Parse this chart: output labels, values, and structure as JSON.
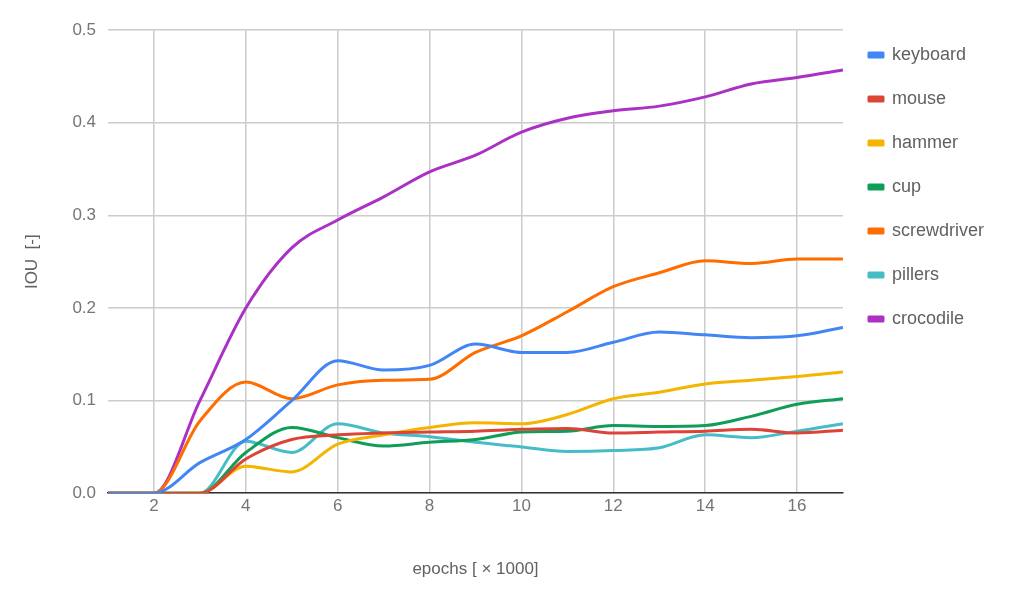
{
  "chart_data": {
    "type": "line",
    "xlabel": "epochs [ × 1000]",
    "ylabel": "IOU  [-]",
    "x": [
      1,
      2,
      3,
      4,
      5,
      6,
      7,
      8,
      9,
      10,
      11,
      12,
      13,
      14,
      15,
      16,
      17
    ],
    "xlim": [
      1,
      17
    ],
    "xticks": [
      2,
      4,
      6,
      8,
      10,
      12,
      14,
      16
    ],
    "ylim": [
      0,
      0.5
    ],
    "yticks": [
      {
        "value": 0,
        "label": "0.0"
      },
      {
        "value": 0.1,
        "label": "0.1"
      },
      {
        "value": 0.2,
        "label": "0.2"
      },
      {
        "value": 0.3,
        "label": "0.3"
      },
      {
        "value": 0.4,
        "label": "0.4"
      },
      {
        "value": 0.5,
        "label": "0.5"
      }
    ],
    "grid": true,
    "legend": "top right",
    "marker": "none",
    "line_style": "solid",
    "series": [
      {
        "name": "keyboard",
        "color": "#4285f4",
        "values": [
          0,
          0,
          0.033,
          0.058,
          0.1,
          0.143,
          0.133,
          0.138,
          0.161,
          0.152,
          0.152,
          0.163,
          0.174,
          0.171,
          0.168,
          0.17,
          0.179
        ]
      },
      {
        "name": "mouse",
        "color": "#db4437",
        "values": [
          0,
          0,
          0,
          0.037,
          0.058,
          0.063,
          0.065,
          0.066,
          0.067,
          0.069,
          0.07,
          0.065,
          0.066,
          0.067,
          0.069,
          0.065,
          0.068
        ]
      },
      {
        "name": "hammer",
        "color": "#f4b400",
        "values": [
          0,
          0,
          0,
          0.029,
          0.023,
          0.053,
          0.063,
          0.071,
          0.076,
          0.075,
          0.085,
          0.102,
          0.109,
          0.118,
          0.122,
          0.126,
          0.131
        ]
      },
      {
        "name": "cup",
        "color": "#0f9d58",
        "values": [
          0,
          0,
          0,
          0.044,
          0.071,
          0.06,
          0.051,
          0.055,
          0.058,
          0.066,
          0.067,
          0.073,
          0.072,
          0.073,
          0.083,
          0.096,
          0.102
        ]
      },
      {
        "name": "screwdriver",
        "color": "#ff6d00",
        "values": [
          0,
          0,
          0.078,
          0.12,
          0.102,
          0.117,
          0.122,
          0.123,
          0.152,
          0.17,
          0.196,
          0.223,
          0.238,
          0.251,
          0.248,
          0.253,
          0.253
        ]
      },
      {
        "name": "pillers",
        "color": "#46bdc6",
        "values": [
          0,
          0,
          0,
          0.056,
          0.044,
          0.075,
          0.065,
          0.061,
          0.055,
          0.05,
          0.045,
          0.046,
          0.049,
          0.063,
          0.06,
          0.067,
          0.075
        ]
      },
      {
        "name": "crocodile",
        "color": "#ab30c4",
        "values": [
          0,
          0,
          0.1,
          0.2,
          0.265,
          0.295,
          0.32,
          0.347,
          0.365,
          0.39,
          0.405,
          0.413,
          0.418,
          0.428,
          0.442,
          0.449,
          0.457
        ]
      }
    ]
  }
}
